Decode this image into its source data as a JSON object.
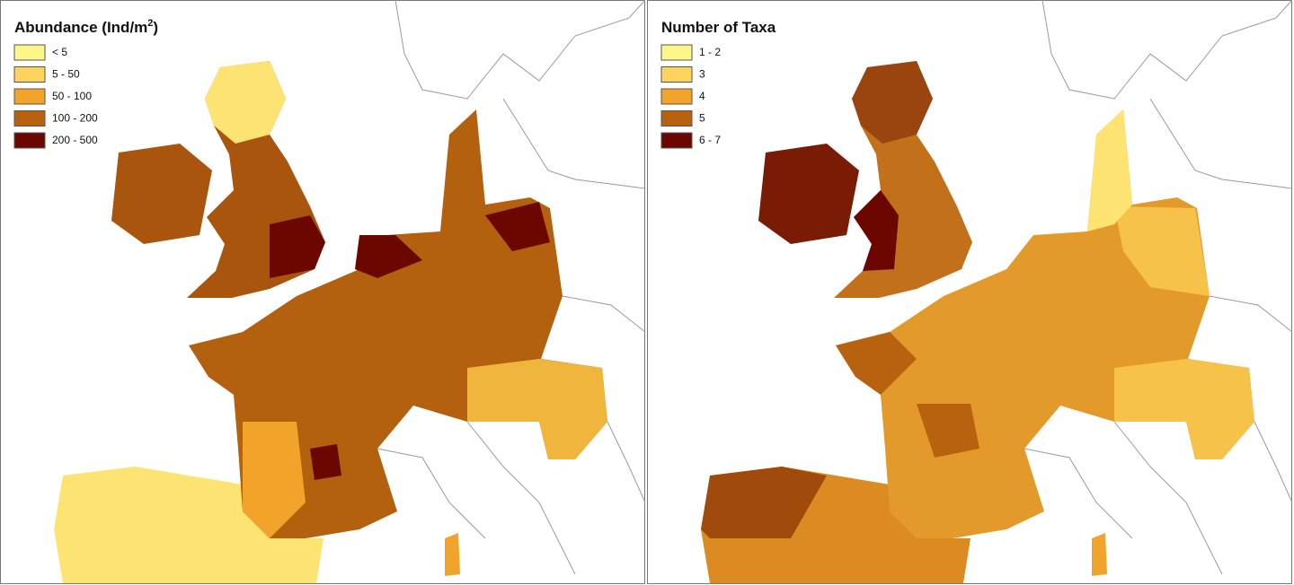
{
  "panels": [
    {
      "title": [
        "Abundance (Ind/m",
        "2",
        ")"
      ],
      "legend": [
        {
          "label": "< 5",
          "color": "#fff68a"
        },
        {
          "label": "5 - 50",
          "color": "#fdd35e"
        },
        {
          "label": "50 - 100",
          "color": "#f2a42a"
        },
        {
          "label": "100 - 200",
          "color": "#b8620f"
        },
        {
          "label": "200 - 500",
          "color": "#6b0600"
        }
      ]
    },
    {
      "title": [
        "Number of Taxa"
      ],
      "legend": [
        {
          "label": "1 - 2",
          "color": "#fff68a"
        },
        {
          "label": "3",
          "color": "#fdd35e"
        },
        {
          "label": "4",
          "color": "#f2a42a"
        },
        {
          "label": "5",
          "color": "#b8620f"
        },
        {
          "label": "6 - 7",
          "color": "#6b0600"
        }
      ]
    }
  ]
}
